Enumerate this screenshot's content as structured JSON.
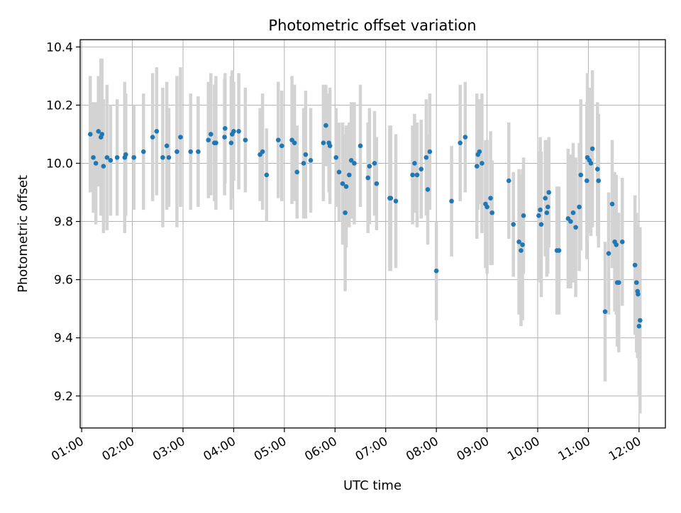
{
  "chart_data": {
    "type": "scatter",
    "title": "Photometric offset variation",
    "xlabel": "UTC time",
    "ylabel": "Photometric offset",
    "x_tick_labels": [
      "01:00",
      "02:00",
      "03:00",
      "04:00",
      "05:00",
      "06:00",
      "07:00",
      "08:00",
      "09:00",
      "10:00",
      "11:00",
      "12:00"
    ],
    "y_tick_labels": [
      "9.2",
      "9.4",
      "9.6",
      "9.8",
      "10.0",
      "10.2",
      "10.4"
    ],
    "x_unit": "hours UTC",
    "xlim": [
      0.97,
      12.52
    ],
    "ylim": [
      9.09,
      10.425
    ],
    "grid": true,
    "colors": {
      "point": "#1f77b4",
      "errorbar": "#d3d3d3",
      "grid": "#b0b0b0"
    },
    "series": [
      {
        "points": [
          [
            1.17,
            10.1,
            0.2
          ],
          [
            1.23,
            10.02,
            0.19
          ],
          [
            1.28,
            10.0,
            0.21
          ],
          [
            1.33,
            10.11,
            0.19
          ],
          [
            1.38,
            10.09,
            0.27
          ],
          [
            1.4,
            10.1,
            0.26
          ],
          [
            1.43,
            9.99,
            0.23
          ],
          [
            1.5,
            10.02,
            0.25
          ],
          [
            1.57,
            10.01,
            0.19
          ],
          [
            1.7,
            10.02,
            0.2
          ],
          [
            1.85,
            10.02,
            0.26
          ],
          [
            1.87,
            10.03,
            0.21
          ],
          [
            2.03,
            10.02,
            0.18
          ],
          [
            2.22,
            10.04,
            0.2
          ],
          [
            2.4,
            10.09,
            0.22
          ],
          [
            2.48,
            10.11,
            0.22
          ],
          [
            2.6,
            10.02,
            0.24
          ],
          [
            2.68,
            10.06,
            0.22
          ],
          [
            2.72,
            10.02,
            0.17
          ],
          [
            2.88,
            10.04,
            0.26
          ],
          [
            2.95,
            10.09,
            0.24
          ],
          [
            3.15,
            10.04,
            0.2
          ],
          [
            3.3,
            10.04,
            0.19
          ],
          [
            3.5,
            10.08,
            0.2
          ],
          [
            3.55,
            10.1,
            0.21
          ],
          [
            3.62,
            10.07,
            0.2
          ],
          [
            3.65,
            10.07,
            0.23
          ],
          [
            3.82,
            10.09,
            0.2
          ],
          [
            3.83,
            10.12,
            0.19
          ],
          [
            3.95,
            10.07,
            0.23
          ],
          [
            3.97,
            10.1,
            0.22
          ],
          [
            4.0,
            10.11,
            0.17
          ],
          [
            4.1,
            10.11,
            0.2
          ],
          [
            4.23,
            10.08,
            0.18
          ],
          [
            4.52,
            10.03,
            0.16
          ],
          [
            4.57,
            10.04,
            0.2
          ],
          [
            4.65,
            9.96,
            0.16
          ],
          [
            4.88,
            10.08,
            0.2
          ],
          [
            4.95,
            10.06,
            0.19
          ],
          [
            5.15,
            10.08,
            0.22
          ],
          [
            5.2,
            10.07,
            0.2
          ],
          [
            5.25,
            9.97,
            0.16
          ],
          [
            5.38,
            10.0,
            0.19
          ],
          [
            5.42,
            10.03,
            0.22
          ],
          [
            5.52,
            10.01,
            0.18
          ],
          [
            5.77,
            10.07,
            0.2
          ],
          [
            5.82,
            10.13,
            0.14
          ],
          [
            5.88,
            10.07,
            0.17
          ],
          [
            5.9,
            10.06,
            0.2
          ],
          [
            6.02,
            10.02,
            0.17
          ],
          [
            6.08,
            9.97,
            0.17
          ],
          [
            6.15,
            9.93,
            0.21
          ],
          [
            6.2,
            9.83,
            0.27
          ],
          [
            6.22,
            9.92,
            0.21
          ],
          [
            6.28,
            9.96,
            0.18
          ],
          [
            6.32,
            10.01,
            0.2
          ],
          [
            6.38,
            10.0,
            0.21
          ],
          [
            6.5,
            10.06,
            0.21
          ],
          [
            6.65,
            9.95,
            0.19
          ],
          [
            6.68,
            9.99,
            0.2
          ],
          [
            6.78,
            10.0,
            0.18
          ],
          [
            6.82,
            9.93,
            0.16
          ],
          [
            7.08,
            9.88,
            0.25
          ],
          [
            7.1,
            9.88,
            0.25
          ],
          [
            7.2,
            9.87,
            0.23
          ],
          [
            7.53,
            9.96,
            0.17
          ],
          [
            7.57,
            10.0,
            0.17
          ],
          [
            7.62,
            9.96,
            0.18
          ],
          [
            7.7,
            9.98,
            0.17
          ],
          [
            7.8,
            10.02,
            0.2
          ],
          [
            7.83,
            9.91,
            0.19
          ],
          [
            7.87,
            10.04,
            0.2
          ],
          [
            8.0,
            9.63,
            0.17
          ],
          [
            8.3,
            9.87,
            0.19
          ],
          [
            8.47,
            10.07,
            0.2
          ],
          [
            8.57,
            10.09,
            0.19
          ],
          [
            8.8,
            9.99,
            0.25
          ],
          [
            8.82,
            10.03,
            0.19
          ],
          [
            8.85,
            10.04,
            0.18
          ],
          [
            8.9,
            10.0,
            0.24
          ],
          [
            8.97,
            9.86,
            0.22
          ],
          [
            9.0,
            9.85,
            0.23
          ],
          [
            9.07,
            9.88,
            0.23
          ],
          [
            9.1,
            9.83,
            0.18
          ],
          [
            9.43,
            9.94,
            0.2
          ],
          [
            9.52,
            9.79,
            0.18
          ],
          [
            9.63,
            9.73,
            0.25
          ],
          [
            9.67,
            9.7,
            0.26
          ],
          [
            9.7,
            9.72,
            0.26
          ],
          [
            9.72,
            9.82,
            0.2
          ],
          [
            10.02,
            9.82,
            0.22
          ],
          [
            10.05,
            9.84,
            0.25
          ],
          [
            10.07,
            9.79,
            0.25
          ],
          [
            10.15,
            9.88,
            0.2
          ],
          [
            10.18,
            9.83,
            0.22
          ],
          [
            10.2,
            9.85,
            0.23
          ],
          [
            10.22,
            9.9,
            0.19
          ],
          [
            10.38,
            9.7,
            0.22
          ],
          [
            10.42,
            9.7,
            0.22
          ],
          [
            10.6,
            9.81,
            0.24
          ],
          [
            10.65,
            9.8,
            0.23
          ],
          [
            10.7,
            9.83,
            0.24
          ],
          [
            10.75,
            9.78,
            0.24
          ],
          [
            10.82,
            9.85,
            0.22
          ],
          [
            10.85,
            9.96,
            0.26
          ],
          [
            10.97,
            9.94,
            0.27
          ],
          [
            10.98,
            10.02,
            0.29
          ],
          [
            11.02,
            10.01,
            0.25
          ],
          [
            11.05,
            10.0,
            0.25
          ],
          [
            11.08,
            10.05,
            0.27
          ],
          [
            11.18,
            9.98,
            0.23
          ],
          [
            11.2,
            9.94,
            0.23
          ],
          [
            11.33,
            9.49,
            0.24
          ],
          [
            11.4,
            9.69,
            0.21
          ],
          [
            11.47,
            9.86,
            0.22
          ],
          [
            11.52,
            9.73,
            0.24
          ],
          [
            11.55,
            9.72,
            0.24
          ],
          [
            11.57,
            9.59,
            0.22
          ],
          [
            11.6,
            9.59,
            0.24
          ],
          [
            11.67,
            9.73,
            0.22
          ],
          [
            11.92,
            9.65,
            0.24
          ],
          [
            11.95,
            9.59,
            0.24
          ],
          [
            11.97,
            9.56,
            0.23
          ],
          [
            11.98,
            9.55,
            0.22
          ],
          [
            12.0,
            9.44,
            0.24
          ],
          [
            12.02,
            9.46,
            0.32
          ]
        ]
      }
    ]
  }
}
